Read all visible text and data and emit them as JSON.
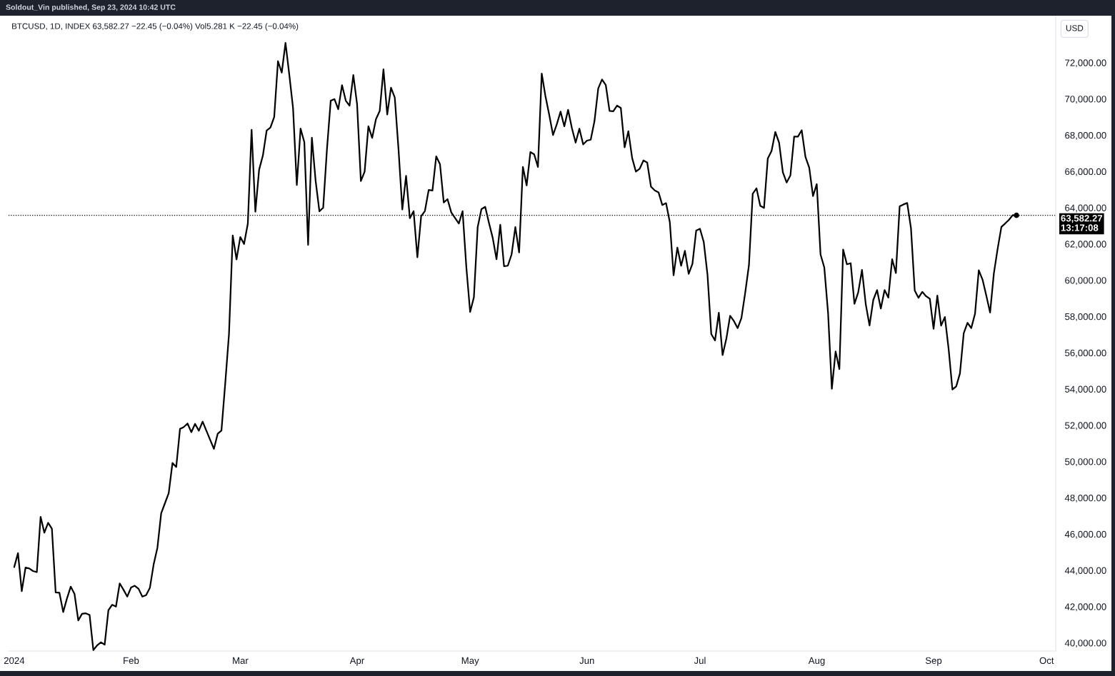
{
  "chart_data": {
    "type": "line",
    "title": "BTCUSD, 1D, INDEX 63,582.27 −22.45 (−0.04%) Vol5.281 K −22.45 (−0.04%)",
    "ylabel": "USD",
    "annotations": [
      "Soldout_Vin published, Sep 23, 2024 10:42 UTC"
    ],
    "x": [
      "2024-01-01",
      "2024-01-02",
      "2024-01-03",
      "2024-01-04",
      "2024-01-05",
      "2024-01-06",
      "2024-01-07",
      "2024-01-08",
      "2024-01-09",
      "2024-01-10",
      "2024-01-11",
      "2024-01-12",
      "2024-01-13",
      "2024-01-14",
      "2024-01-15",
      "2024-01-16",
      "2024-01-17",
      "2024-01-18",
      "2024-01-19",
      "2024-01-20",
      "2024-01-21",
      "2024-01-22",
      "2024-01-23",
      "2024-01-24",
      "2024-01-25",
      "2024-01-26",
      "2024-01-27",
      "2024-01-28",
      "2024-01-29",
      "2024-01-30",
      "2024-01-31",
      "2024-02-01",
      "2024-02-02",
      "2024-02-03",
      "2024-02-04",
      "2024-02-05",
      "2024-02-06",
      "2024-02-07",
      "2024-02-08",
      "2024-02-09",
      "2024-02-10",
      "2024-02-11",
      "2024-02-12",
      "2024-02-13",
      "2024-02-14",
      "2024-02-15",
      "2024-02-16",
      "2024-02-17",
      "2024-02-18",
      "2024-02-19",
      "2024-02-20",
      "2024-02-21",
      "2024-02-22",
      "2024-02-23",
      "2024-02-24",
      "2024-02-25",
      "2024-02-26",
      "2024-02-27",
      "2024-02-28",
      "2024-02-29",
      "2024-03-01",
      "2024-03-02",
      "2024-03-03",
      "2024-03-04",
      "2024-03-05",
      "2024-03-06",
      "2024-03-07",
      "2024-03-08",
      "2024-03-09",
      "2024-03-10",
      "2024-03-11",
      "2024-03-12",
      "2024-03-13",
      "2024-03-14",
      "2024-03-15",
      "2024-03-16",
      "2024-03-17",
      "2024-03-18",
      "2024-03-19",
      "2024-03-20",
      "2024-03-21",
      "2024-03-22",
      "2024-03-23",
      "2024-03-24",
      "2024-03-25",
      "2024-03-26",
      "2024-03-27",
      "2024-03-28",
      "2024-03-29",
      "2024-03-30",
      "2024-03-31",
      "2024-04-01",
      "2024-04-02",
      "2024-04-03",
      "2024-04-04",
      "2024-04-05",
      "2024-04-06",
      "2024-04-07",
      "2024-04-08",
      "2024-04-09",
      "2024-04-10",
      "2024-04-11",
      "2024-04-12",
      "2024-04-13",
      "2024-04-14",
      "2024-04-15",
      "2024-04-16",
      "2024-04-17",
      "2024-04-18",
      "2024-04-19",
      "2024-04-20",
      "2024-04-21",
      "2024-04-22",
      "2024-04-23",
      "2024-04-24",
      "2024-04-25",
      "2024-04-26",
      "2024-04-27",
      "2024-04-28",
      "2024-04-29",
      "2024-04-30",
      "2024-05-01",
      "2024-05-02",
      "2024-05-03",
      "2024-05-04",
      "2024-05-05",
      "2024-05-06",
      "2024-05-07",
      "2024-05-08",
      "2024-05-09",
      "2024-05-10",
      "2024-05-11",
      "2024-05-12",
      "2024-05-13",
      "2024-05-14",
      "2024-05-15",
      "2024-05-16",
      "2024-05-17",
      "2024-05-18",
      "2024-05-19",
      "2024-05-20",
      "2024-05-21",
      "2024-05-22",
      "2024-05-23",
      "2024-05-24",
      "2024-05-25",
      "2024-05-26",
      "2024-05-27",
      "2024-05-28",
      "2024-05-29",
      "2024-05-30",
      "2024-05-31",
      "2024-06-01",
      "2024-06-02",
      "2024-06-03",
      "2024-06-04",
      "2024-06-05",
      "2024-06-06",
      "2024-06-07",
      "2024-06-08",
      "2024-06-09",
      "2024-06-10",
      "2024-06-11",
      "2024-06-12",
      "2024-06-13",
      "2024-06-14",
      "2024-06-15",
      "2024-06-16",
      "2024-06-17",
      "2024-06-18",
      "2024-06-19",
      "2024-06-20",
      "2024-06-21",
      "2024-06-22",
      "2024-06-23",
      "2024-06-24",
      "2024-06-25",
      "2024-06-26",
      "2024-06-27",
      "2024-06-28",
      "2024-06-29",
      "2024-06-30",
      "2024-07-01",
      "2024-07-02",
      "2024-07-03",
      "2024-07-04",
      "2024-07-05",
      "2024-07-06",
      "2024-07-07",
      "2024-07-08",
      "2024-07-09",
      "2024-07-10",
      "2024-07-11",
      "2024-07-12",
      "2024-07-13",
      "2024-07-14",
      "2024-07-15",
      "2024-07-16",
      "2024-07-17",
      "2024-07-18",
      "2024-07-19",
      "2024-07-20",
      "2024-07-21",
      "2024-07-22",
      "2024-07-23",
      "2024-07-24",
      "2024-07-25",
      "2024-07-26",
      "2024-07-27",
      "2024-07-28",
      "2024-07-29",
      "2024-07-30",
      "2024-07-31",
      "2024-08-01",
      "2024-08-02",
      "2024-08-03",
      "2024-08-04",
      "2024-08-05",
      "2024-08-06",
      "2024-08-07",
      "2024-08-08",
      "2024-08-09",
      "2024-08-10",
      "2024-08-11",
      "2024-08-12",
      "2024-08-13",
      "2024-08-14",
      "2024-08-15",
      "2024-08-16",
      "2024-08-17",
      "2024-08-18",
      "2024-08-19",
      "2024-08-20",
      "2024-08-21",
      "2024-08-22",
      "2024-08-23",
      "2024-08-24",
      "2024-08-25",
      "2024-08-26",
      "2024-08-27",
      "2024-08-28",
      "2024-08-29",
      "2024-08-30",
      "2024-08-31",
      "2024-09-01",
      "2024-09-02",
      "2024-09-03",
      "2024-09-04",
      "2024-09-05",
      "2024-09-06",
      "2024-09-07",
      "2024-09-08",
      "2024-09-09",
      "2024-09-10",
      "2024-09-11",
      "2024-09-12",
      "2024-09-13",
      "2024-09-14",
      "2024-09-15",
      "2024-09-16",
      "2024-09-17",
      "2024-09-18",
      "2024-09-19",
      "2024-09-20",
      "2024-09-21",
      "2024-09-22",
      "2024-09-23"
    ],
    "series": [
      {
        "color": "#000000",
        "values": [
          44180,
          44950,
          42850,
          44150,
          44100,
          43960,
          43900,
          46950,
          46080,
          46620,
          46300,
          42780,
          42760,
          41700,
          42450,
          43100,
          42700,
          41240,
          41600,
          41630,
          41540,
          39600,
          39860,
          40030,
          39900,
          41800,
          42100,
          42000,
          43280,
          42930,
          42550,
          43050,
          43150,
          42980,
          42550,
          42630,
          43030,
          44320,
          45240,
          47140,
          47700,
          48260,
          49920,
          49700,
          51800,
          51900,
          52100,
          51620,
          52080,
          51700,
          52200,
          51700,
          51200,
          50700,
          51530,
          51710,
          54300,
          57030,
          62470,
          61150,
          62380,
          62000,
          63120,
          68300,
          63780,
          66100,
          66880,
          68260,
          68420,
          69000,
          72080,
          71450,
          73090,
          71350,
          69500,
          65250,
          68360,
          67610,
          61950,
          67860,
          65470,
          63800,
          64000,
          67220,
          69900,
          69990,
          69430,
          70760,
          69900,
          69630,
          71320,
          69700,
          65470,
          65990,
          68490,
          67850,
          68880,
          69330,
          71630,
          69140,
          70620,
          70080,
          67200,
          63900,
          65760,
          63420,
          63810,
          61270,
          63530,
          63820,
          64980,
          64950,
          66830,
          66400,
          64290,
          64470,
          63740,
          63430,
          63130,
          63810,
          60700,
          58250,
          59060,
          62930,
          63920,
          64050,
          63160,
          62330,
          61160,
          63060,
          60770,
          60800,
          61420,
          62930,
          61530,
          66250,
          65230,
          67070,
          66940,
          66250,
          71400,
          70140,
          69120,
          68010,
          68600,
          69300,
          68490,
          69400,
          68400,
          67590,
          68360,
          67490,
          67700,
          67750,
          68770,
          70580,
          71070,
          70770,
          69340,
          69320,
          69630,
          69500,
          67330,
          68220,
          66740,
          65990,
          66150,
          66610,
          66490,
          65160,
          64950,
          64850,
          64150,
          64250,
          63200,
          60270,
          61800,
          60800,
          61620,
          60350,
          60900,
          62740,
          62840,
          62110,
          60300,
          57030,
          56680,
          58210,
          55870,
          56770,
          58040,
          57750,
          57360,
          57910,
          59300,
          60830,
          64770,
          65070,
          64110,
          63990,
          66720,
          67130,
          68180,
          67590,
          65950,
          65390,
          65780,
          67920,
          67920,
          68270,
          66800,
          66210,
          64640,
          65300,
          61420,
          60700,
          58200,
          54010,
          56070,
          55100,
          61690,
          60880,
          60940,
          58700,
          59330,
          60570,
          58680,
          57510,
          58910,
          59460,
          58440,
          59460,
          59040,
          61160,
          60400,
          64080,
          64180,
          64260,
          62870,
          59430,
          59030,
          59360,
          59120,
          58980,
          57320,
          59150,
          57500,
          57970,
          56200,
          53970,
          54140,
          54860,
          57070,
          57650,
          57360,
          58150,
          60550,
          60030,
          59150,
          58220,
          60370,
          61730,
          62940,
          63130,
          63330,
          63590,
          63580
        ]
      },
      {
        "type": "scatter",
        "x": [
          "2024-09-23"
        ],
        "values": [
          63580
        ],
        "color": "#000000",
        "marker": "circle"
      }
    ],
    "xlim": [
      "2023-12-30T12:00",
      "2024-10-03T10:00"
    ],
    "xticks": [
      {
        "value": "2024-01-01",
        "label": "2024"
      },
      {
        "value": "2024-02-01",
        "label": "Feb"
      },
      {
        "value": "2024-03-01",
        "label": "Mar"
      },
      {
        "value": "2024-04-01",
        "label": "Apr"
      },
      {
        "value": "2024-05-01",
        "label": "May"
      },
      {
        "value": "2024-06-01",
        "label": "Jun"
      },
      {
        "value": "2024-07-01",
        "label": "Jul"
      },
      {
        "value": "2024-08-01",
        "label": "Aug"
      },
      {
        "value": "2024-09-01",
        "label": "Sep"
      },
      {
        "value": "2024-10-01",
        "label": "Oct"
      }
    ],
    "ylim": [
      39550,
      74550
    ],
    "yticks": [
      {
        "value": 40000,
        "label": "40,000.00"
      },
      {
        "value": 42000,
        "label": "42,000.00"
      },
      {
        "value": 44000,
        "label": "44,000.00"
      },
      {
        "value": 46000,
        "label": "46,000.00"
      },
      {
        "value": 48000,
        "label": "48,000.00"
      },
      {
        "value": 50000,
        "label": "50,000.00"
      },
      {
        "value": 52000,
        "label": "52,000.00"
      },
      {
        "value": 54000,
        "label": "54,000.00"
      },
      {
        "value": 56000,
        "label": "56,000.00"
      },
      {
        "value": 58000,
        "label": "58,000.00"
      },
      {
        "value": 60000,
        "label": "60,000.00"
      },
      {
        "value": 62000,
        "label": "62,000.00"
      },
      {
        "value": 64000,
        "label": "64,000.00"
      },
      {
        "value": 66000,
        "label": "66,000.00"
      },
      {
        "value": 68000,
        "label": "68,000.00"
      },
      {
        "value": 70000,
        "label": "70,000.00"
      },
      {
        "value": 72000,
        "label": "72,000.00"
      }
    ],
    "ref_lines": [
      {
        "axis": "y",
        "value": 63582.27,
        "label": "63,582.27\n13:17:08",
        "color": "#000000",
        "line_style": "dotted"
      }
    ]
  }
}
